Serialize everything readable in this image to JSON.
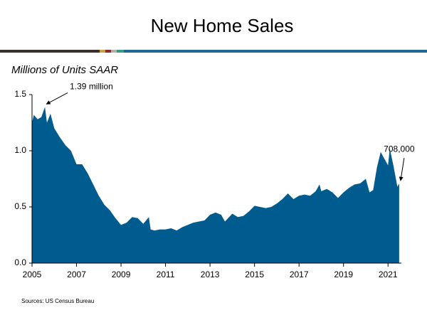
{
  "chart_data": {
    "type": "area",
    "title": "New Home Sales",
    "y_label": "Millions of Units SAAR",
    "source": "Sources: US Census Bureau",
    "color": "#005b8e",
    "x": [
      2005.0,
      2005.08,
      2005.25,
      2005.42,
      2005.58,
      2005.67,
      2005.83,
      2006.0,
      2006.25,
      2006.5,
      2006.75,
      2007.0,
      2007.25,
      2007.5,
      2007.75,
      2008.0,
      2008.25,
      2008.5,
      2008.75,
      2009.0,
      2009.25,
      2009.5,
      2009.75,
      2010.0,
      2010.25,
      2010.33,
      2010.5,
      2010.75,
      2011.0,
      2011.25,
      2011.5,
      2011.75,
      2012.0,
      2012.25,
      2012.5,
      2012.75,
      2013.0,
      2013.25,
      2013.5,
      2013.67,
      2014.0,
      2014.25,
      2014.5,
      2014.75,
      2015.0,
      2015.25,
      2015.5,
      2015.75,
      2016.0,
      2016.25,
      2016.5,
      2016.75,
      2017.0,
      2017.25,
      2017.5,
      2017.75,
      2017.92,
      2018.0,
      2018.25,
      2018.5,
      2018.75,
      2019.0,
      2019.25,
      2019.5,
      2019.75,
      2020.0,
      2020.17,
      2020.33,
      2020.5,
      2020.67,
      2020.83,
      2021.0,
      2021.08,
      2021.25,
      2021.42,
      2021.5
    ],
    "values": [
      1.25,
      1.32,
      1.28,
      1.3,
      1.39,
      1.25,
      1.33,
      1.2,
      1.12,
      1.05,
      1.0,
      0.88,
      0.88,
      0.8,
      0.7,
      0.6,
      0.52,
      0.47,
      0.4,
      0.34,
      0.36,
      0.41,
      0.4,
      0.35,
      0.41,
      0.3,
      0.29,
      0.3,
      0.3,
      0.31,
      0.29,
      0.32,
      0.34,
      0.36,
      0.37,
      0.38,
      0.43,
      0.45,
      0.43,
      0.37,
      0.44,
      0.41,
      0.42,
      0.46,
      0.51,
      0.5,
      0.49,
      0.5,
      0.53,
      0.57,
      0.62,
      0.57,
      0.6,
      0.61,
      0.6,
      0.64,
      0.7,
      0.64,
      0.66,
      0.63,
      0.58,
      0.63,
      0.67,
      0.7,
      0.71,
      0.75,
      0.63,
      0.65,
      0.85,
      0.99,
      0.93,
      0.87,
      1.02,
      0.86,
      0.68,
      0.708
    ],
    "xlim": [
      2005,
      2021.6
    ],
    "xticks": [
      2005,
      2007,
      2009,
      2011,
      2013,
      2015,
      2017,
      2019,
      2021
    ],
    "ylim": [
      0,
      1.5
    ],
    "yticks": [
      {
        "value": 0,
        "label": "0.0"
      },
      {
        "value": 0.5,
        "label": "0.5"
      },
      {
        "value": 1,
        "label": "1.0"
      },
      1.5
    ],
    "annotations": [
      {
        "text": "1.39 million",
        "x": 2005.58,
        "y": 1.39
      },
      {
        "text": "708,000",
        "x": 2021.5,
        "y": 0.708
      }
    ]
  }
}
